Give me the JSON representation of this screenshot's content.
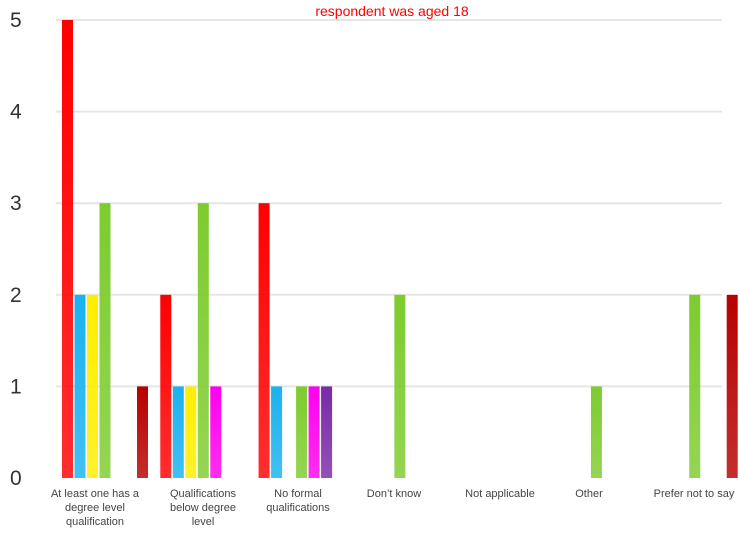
{
  "chart_data": {
    "type": "bar",
    "title": "respondent was aged 18",
    "xlabel": "",
    "ylabel": "",
    "ylim": [
      0,
      5
    ],
    "yticks": [
      "0",
      "1",
      "2",
      "3",
      "4",
      "5"
    ],
    "grid": true,
    "legend": "none",
    "categories": [
      "At least one has a degree level qualification",
      "Qualifications below degree level",
      "No formal qualifications",
      "Don’t know",
      "Not applicable",
      "Other",
      "Prefer not to say"
    ],
    "category_lines": [
      [
        "At least one has a",
        "degree level",
        "qualification"
      ],
      [
        "Qualifications",
        "below degree",
        "level"
      ],
      [
        "No formal",
        "qualifications"
      ],
      [
        "Don’t know"
      ],
      [
        "Not applicable"
      ],
      [
        "Other"
      ],
      [
        "Prefer not to say"
      ]
    ],
    "series": [
      {
        "color": "#ff0000",
        "values": [
          5,
          2,
          3,
          0,
          0,
          0,
          0
        ]
      },
      {
        "color": "#1ab2f0",
        "values": [
          2,
          1,
          1,
          0,
          0,
          0,
          0
        ]
      },
      {
        "color": "#ffee00",
        "values": [
          2,
          1,
          0,
          0,
          0,
          0,
          0
        ]
      },
      {
        "color": "#7dcc2e",
        "values": [
          3,
          3,
          1,
          2,
          0,
          1,
          2
        ]
      },
      {
        "color": "#ff00ee",
        "values": [
          0,
          1,
          1,
          0,
          0,
          0,
          0
        ]
      },
      {
        "color": "#7a2aa8",
        "values": [
          0,
          0,
          1,
          0,
          0,
          0,
          0
        ]
      },
      {
        "color": "#b80000",
        "values": [
          1,
          0,
          0,
          0,
          0,
          0,
          2
        ]
      }
    ]
  }
}
